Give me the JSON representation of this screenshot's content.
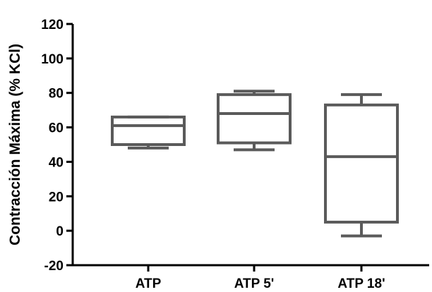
{
  "chart_data": {
    "type": "box",
    "ylabel": "Contracción Máxima (% KCl)",
    "xlabel": "",
    "ylim": [
      -20,
      120
    ],
    "yticks": [
      "-20",
      "0",
      "20",
      "40",
      "60",
      "80",
      "100",
      "120"
    ],
    "categories": [
      "ATP",
      "ATP 5'",
      "ATP 18'"
    ],
    "boxes": [
      {
        "category": "ATP",
        "min": 48,
        "q1": 50,
        "median": 61,
        "q3": 66,
        "max": 66
      },
      {
        "category": "ATP 5'",
        "min": 47,
        "q1": 51,
        "median": 68,
        "q3": 79,
        "max": 81
      },
      {
        "category": "ATP 18'",
        "min": -3,
        "q1": 5,
        "median": 43,
        "q3": 73,
        "max": 79
      }
    ],
    "grid": false,
    "colors": {
      "box": "#5a5a5a",
      "axis": "#000000"
    }
  }
}
